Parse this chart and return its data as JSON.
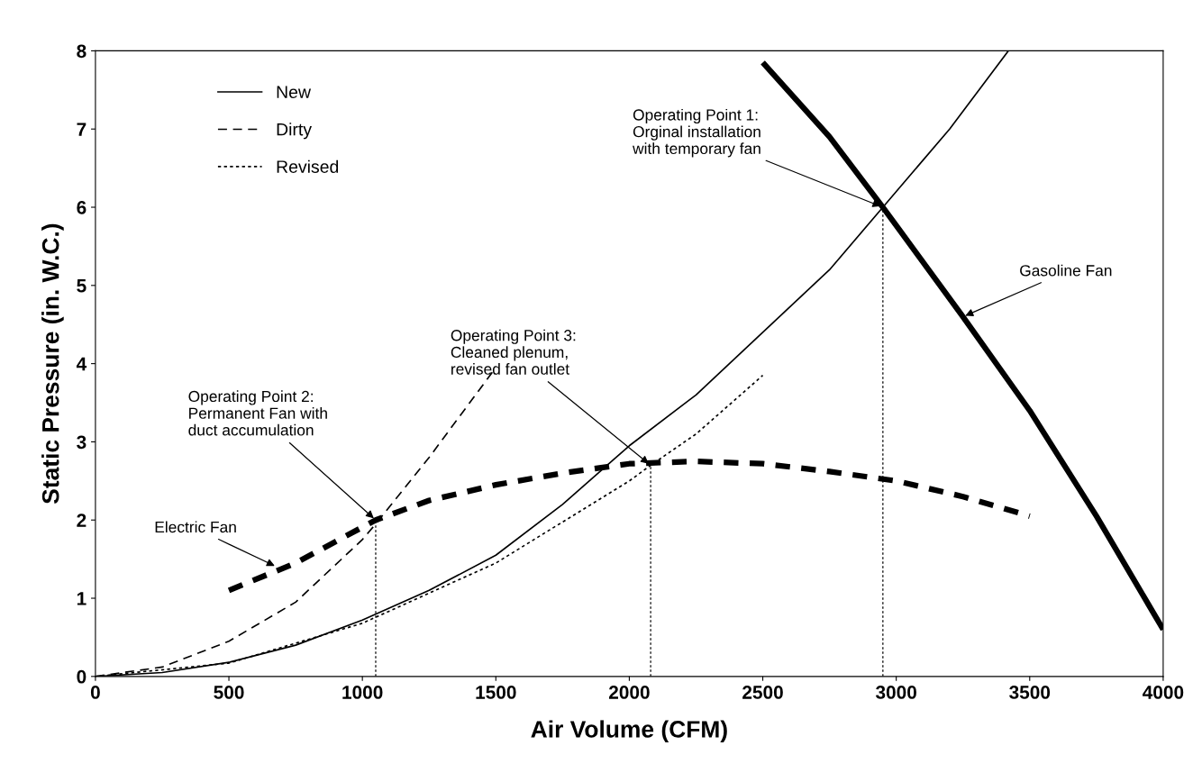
{
  "chart_data": {
    "type": "line",
    "xlabel": "Air Volume (CFM)",
    "ylabel": "Static Pressure (in. W.C.)",
    "xlim": [
      0,
      4000
    ],
    "ylim": [
      0,
      8
    ],
    "xticks": [
      0,
      500,
      1000,
      1500,
      2000,
      2500,
      3000,
      3500,
      4000
    ],
    "yticks": [
      0,
      1,
      2,
      3,
      4,
      5,
      6,
      7,
      8
    ],
    "grid": false,
    "legend": "top left",
    "marker": "none",
    "series": [
      {
        "name": "New",
        "color": "#000000",
        "line_style": "solid",
        "x": [
          0,
          250,
          500,
          750,
          1000,
          1250,
          1500,
          1750,
          2000,
          2250,
          2500,
          2750,
          2950,
          3200,
          3420
        ],
        "values": [
          0,
          0.05,
          0.18,
          0.4,
          0.72,
          1.1,
          1.55,
          2.2,
          2.95,
          3.6,
          4.4,
          5.2,
          6.0,
          7.0,
          8.0
        ]
      },
      {
        "name": "Dirty",
        "color": "#000000",
        "line_style": "dashed",
        "x": [
          0,
          250,
          500,
          750,
          1000,
          1050,
          1250,
          1500
        ],
        "values": [
          0,
          0.12,
          0.45,
          0.95,
          1.75,
          1.95,
          2.8,
          3.95
        ]
      },
      {
        "name": "Revised",
        "color": "#000000",
        "line_style": "dotted",
        "x": [
          0,
          500,
          1000,
          1500,
          2000,
          2080,
          2250,
          2500
        ],
        "values": [
          0,
          0.17,
          0.68,
          1.45,
          2.5,
          2.7,
          3.1,
          3.85
        ]
      },
      {
        "color": "#000000",
        "line_style": "dashed",
        "x": [
          500,
          750,
          1050,
          1250,
          1500,
          1750,
          2000,
          2250,
          2500,
          2750,
          3000,
          3250,
          3500
        ],
        "values": [
          1.1,
          1.45,
          2.0,
          2.25,
          2.45,
          2.6,
          2.72,
          2.75,
          2.72,
          2.62,
          2.5,
          2.3,
          2.05
        ]
      },
      {
        "color": "#000000",
        "line_style": "solid",
        "x": [
          2500,
          2750,
          2950,
          3250,
          3500,
          3750,
          4000
        ],
        "values": [
          7.85,
          6.9,
          6.0,
          4.6,
          3.4,
          2.05,
          0.6
        ]
      },
      {
        "color": "#000000",
        "line_style": "dotted",
        "x": [
          1050,
          1050
        ],
        "values": [
          0,
          2.0
        ]
      },
      {
        "color": "#000000",
        "line_style": "dotted",
        "x": [
          2080,
          2080
        ],
        "values": [
          0,
          2.7
        ]
      },
      {
        "color": "#000000",
        "line_style": "dotted",
        "x": [
          2950,
          2950
        ],
        "values": [
          0,
          6.0
        ]
      }
    ],
    "annotations": [
      {
        "text": "Operating Point 1:\nOrginal installation\nwith temporary fan",
        "x": 2950,
        "y": 6.0
      },
      {
        "text": "Operating Point 2:\nPermanent Fan with\nduct accumulation",
        "x": 1050,
        "y": 2.0
      },
      {
        "text": "Operating Point 3:\nCleaned plenum,\nrevised fan outlet",
        "x": 2080,
        "y": 2.7
      },
      {
        "text": "Electric Fan",
        "x": 680,
        "y": 1.4
      },
      {
        "text": "Gasoline Fan",
        "x": 3250,
        "y": 4.6
      }
    ]
  }
}
